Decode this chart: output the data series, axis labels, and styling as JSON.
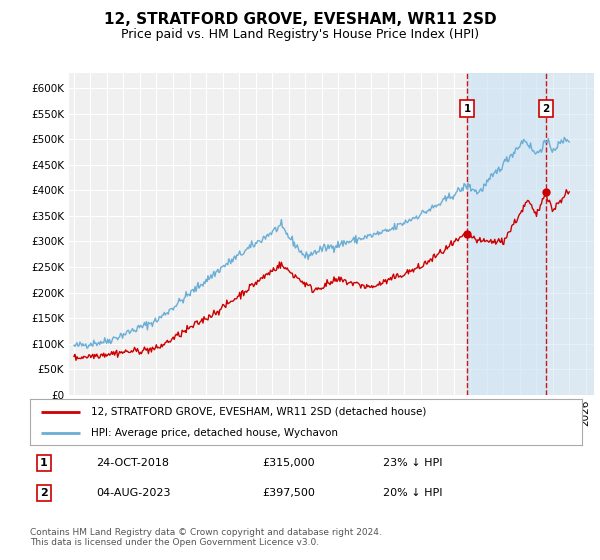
{
  "title": "12, STRATFORD GROVE, EVESHAM, WR11 2SD",
  "subtitle": "Price paid vs. HM Land Registry's House Price Index (HPI)",
  "ylabel_ticks": [
    "£0",
    "£50K",
    "£100K",
    "£150K",
    "£200K",
    "£250K",
    "£300K",
    "£350K",
    "£400K",
    "£450K",
    "£500K",
    "£550K",
    "£600K"
  ],
  "ylim": [
    0,
    630000
  ],
  "ytick_values": [
    0,
    50000,
    100000,
    150000,
    200000,
    250000,
    300000,
    350000,
    400000,
    450000,
    500000,
    550000,
    600000
  ],
  "x_start_year": 1995,
  "x_end_year": 2026,
  "sale1_date": 2018.82,
  "sale1_price": 315000,
  "sale1_label": "1",
  "sale2_date": 2023.58,
  "sale2_price": 397500,
  "sale2_label": "2",
  "hpi_line_color": "#6aaed6",
  "price_line_color": "#cc0000",
  "marker_color": "#cc0000",
  "dashed_line_color": "#cc0000",
  "shade_color": "#d6e8f7",
  "legend_label1": "12, STRATFORD GROVE, EVESHAM, WR11 2SD (detached house)",
  "legend_label2": "HPI: Average price, detached house, Wychavon",
  "footer": "Contains HM Land Registry data © Crown copyright and database right 2024.\nThis data is licensed under the Open Government Licence v3.0.",
  "title_fontsize": 11,
  "subtitle_fontsize": 9,
  "tick_fontsize": 7.5,
  "background_color": "#ffffff",
  "plot_bg_color": "#f0f0f0"
}
